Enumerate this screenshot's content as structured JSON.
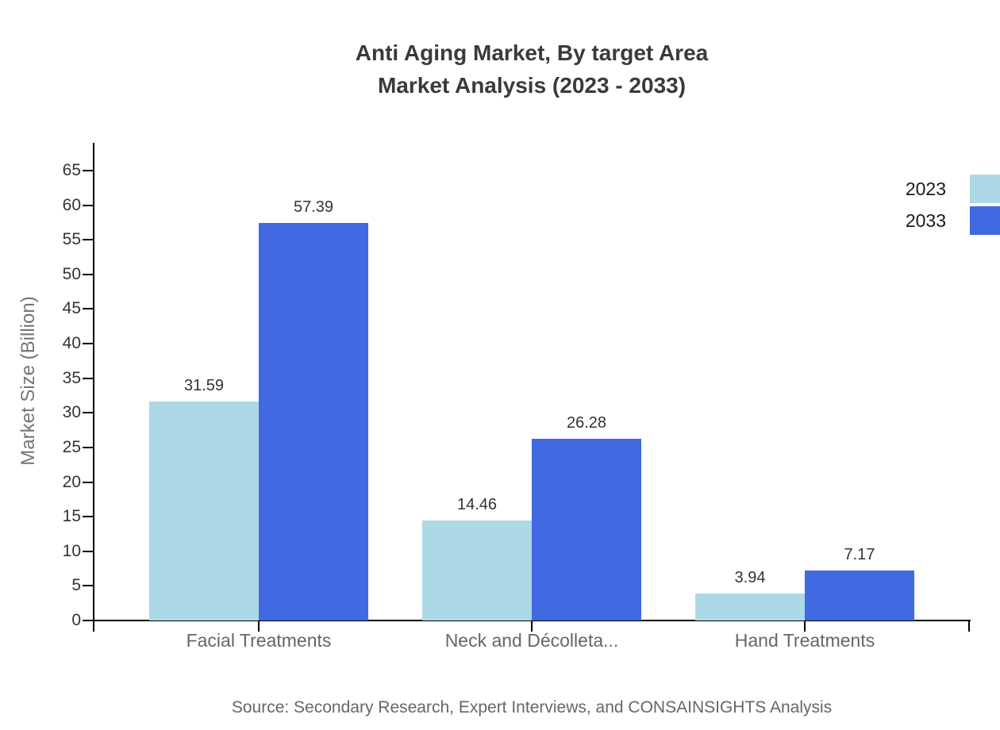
{
  "title": {
    "line1": "Anti Aging Market, By target Area",
    "line2": "Market Analysis (2023 - 2033)"
  },
  "source": "Source: Secondary Research, Expert Interviews, and CONSAINSIGHTS Analysis",
  "chart_data": {
    "type": "bar",
    "categories": [
      "Facial Treatments",
      "Neck and Décolleta...",
      "Hand Treatments"
    ],
    "series": [
      {
        "name": "2023",
        "color": "#add8e6",
        "values": [
          31.59,
          14.46,
          3.94
        ]
      },
      {
        "name": "2033",
        "color": "#4169e1",
        "values": [
          57.39,
          26.28,
          7.17
        ]
      }
    ],
    "value_labels": [
      "31.59",
      "57.39",
      "14.46",
      "26.28",
      "3.94",
      "7.17"
    ],
    "xlabel": "",
    "ylabel": "Market Size (Billion)",
    "ylim": [
      0,
      65
    ],
    "ytick_step": 5,
    "ytick_labels": [
      "0",
      "5",
      "10",
      "15",
      "20",
      "25",
      "30",
      "35",
      "40",
      "45",
      "50",
      "55",
      "60",
      "65"
    ],
    "grid": false,
    "legend_position": "top-right",
    "legend_entries": [
      "2023",
      "2033"
    ]
  }
}
